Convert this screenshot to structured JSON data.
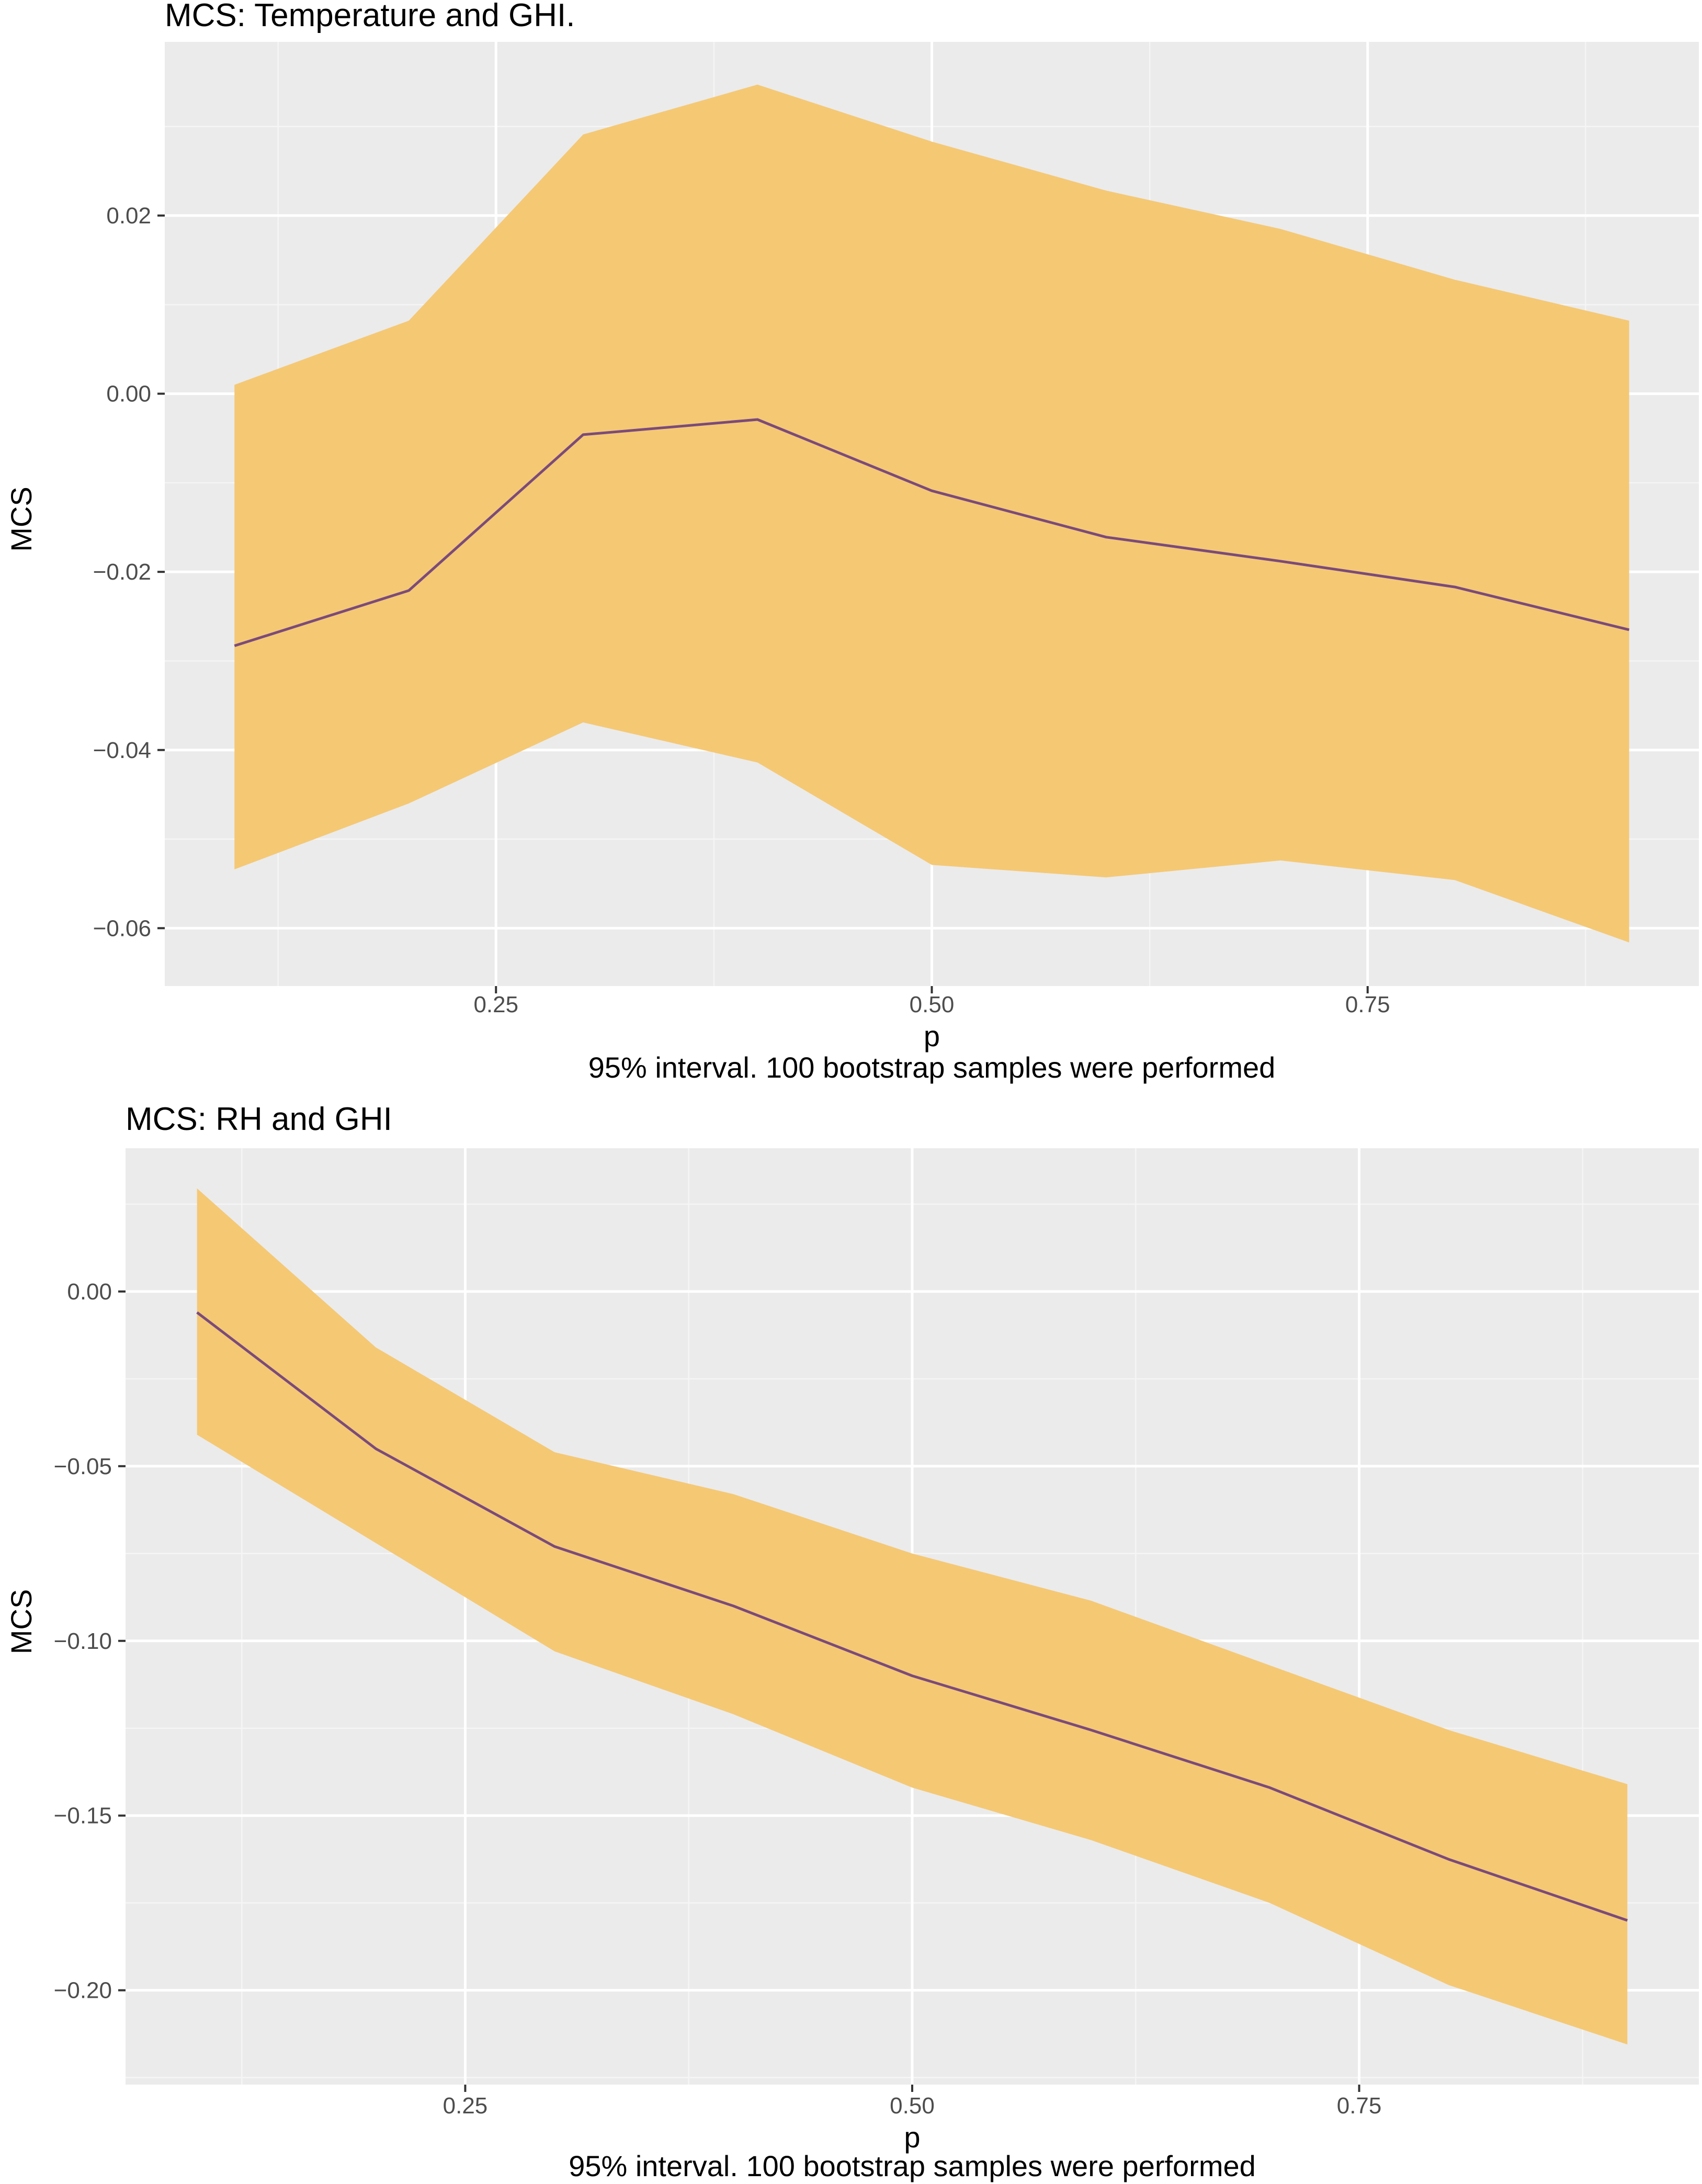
{
  "colors": {
    "panel_background": "#ebebeb",
    "grid_major": "#ffffff",
    "grid_minor": "#f5f5f5",
    "ribbon": "#f5c874",
    "line": "#7b4a7a",
    "tick_label": "#4d4d4d",
    "text": "#000000"
  },
  "chart_data": [
    {
      "type": "area",
      "title": "MCS: Temperature and GHI.",
      "xlabel": "p",
      "ylabel": "MCS",
      "caption": "95% interval. 100 bootstrap samples were performed",
      "xlim": [
        0.06,
        0.94
      ],
      "ylim": [
        -0.0665,
        0.0395
      ],
      "x_ticks": [
        0.25,
        0.5,
        0.75
      ],
      "x_tick_labels": [
        "0.25",
        "0.50",
        "0.75"
      ],
      "y_ticks": [
        0.02,
        0.0,
        -0.02,
        -0.04,
        -0.06
      ],
      "y_tick_labels": [
        "0.02",
        "0.00",
        "−0.02",
        "−0.04",
        "−0.06"
      ],
      "grid": true,
      "x": [
        0.1,
        0.2,
        0.3,
        0.4,
        0.5,
        0.6,
        0.7,
        0.8,
        0.9
      ],
      "series": [
        {
          "name": "estimate",
          "values": [
            -0.0283,
            -0.0221,
            -0.0046,
            -0.0029,
            -0.0109,
            -0.0161,
            -0.0188,
            -0.0217,
            -0.0265
          ]
        },
        {
          "name": "upper",
          "values": [
            0.001,
            0.0082,
            0.0291,
            0.0347,
            0.0283,
            0.0228,
            0.0185,
            0.0128,
            0.0082
          ]
        },
        {
          "name": "lower",
          "values": [
            -0.0534,
            -0.046,
            -0.0369,
            -0.0414,
            -0.0529,
            -0.0543,
            -0.0524,
            -0.0546,
            -0.0616
          ]
        }
      ]
    },
    {
      "type": "area",
      "title": "MCS: RH and GHI",
      "xlabel": "p",
      "ylabel": "MCS",
      "caption": "95% interval. 100 bootstrap samples were performed",
      "xlim": [
        0.06,
        0.94
      ],
      "ylim": [
        -0.227,
        0.041
      ],
      "x_ticks": [
        0.25,
        0.5,
        0.75
      ],
      "x_tick_labels": [
        "0.25",
        "0.50",
        "0.75"
      ],
      "y_ticks": [
        0.0,
        -0.05,
        -0.1,
        -0.15,
        -0.2
      ],
      "y_tick_labels": [
        "0.00",
        "−0.05",
        "−0.10",
        "−0.15",
        "−0.20"
      ],
      "grid": true,
      "x": [
        0.1,
        0.2,
        0.3,
        0.4,
        0.5,
        0.6,
        0.7,
        0.8,
        0.9
      ],
      "series": [
        {
          "name": "estimate",
          "values": [
            -0.006,
            -0.045,
            -0.073,
            -0.09,
            -0.11,
            -0.1255,
            -0.142,
            -0.1625,
            -0.18
          ]
        },
        {
          "name": "upper",
          "values": [
            0.0295,
            -0.016,
            -0.046,
            -0.058,
            -0.075,
            -0.0885,
            -0.107,
            -0.1255,
            -0.141
          ]
        },
        {
          "name": "lower",
          "values": [
            -0.041,
            -0.072,
            -0.103,
            -0.121,
            -0.142,
            -0.157,
            -0.175,
            -0.1985,
            -0.2155
          ]
        }
      ]
    }
  ]
}
